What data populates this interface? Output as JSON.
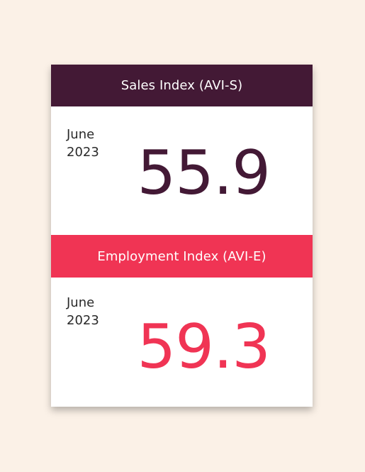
{
  "sales": {
    "title": "Sales Index (AVI-S)",
    "period_month": "June",
    "period_year": "2023",
    "value": "55.9",
    "color": "#431935"
  },
  "employment": {
    "title": "Employment Index (AVI-E)",
    "period_month": "June",
    "period_year": "2023",
    "value": "59.3",
    "color": "#f03454"
  },
  "background_color": "#fbf1e7"
}
